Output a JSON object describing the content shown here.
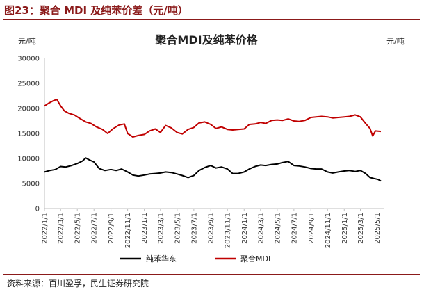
{
  "figure": {
    "title": "图23：聚合 MDI 及纯苯价差（元/吨）",
    "source": "资料来源：百川盈孚，民生证券研究院"
  },
  "colors": {
    "benzene": "#000000",
    "mdi": "#c00000",
    "accent": "#8b1a1a"
  },
  "chart_data": {
    "type": "line",
    "title": "聚合MDI及纯苯价格",
    "ylabel_left": "元/吨",
    "ylabel_right": "元/吨",
    "ylim": [
      0,
      30000
    ],
    "yticks": [
      0,
      5000,
      10000,
      15000,
      20000,
      25000,
      30000
    ],
    "ytick_labels": [
      "0",
      "5000",
      "10000",
      "15000",
      "20000",
      "25000",
      "30000"
    ],
    "xlim": [
      "2022-01-01",
      "2025-05-15"
    ],
    "xticks": [
      "2022-01-01",
      "2022-03-01",
      "2022-05-01",
      "2022-07-01",
      "2022-09-01",
      "2022-11-01",
      "2023-01-01",
      "2023-03-01",
      "2023-05-01",
      "2023-07-01",
      "2023-09-01",
      "2023-11-01",
      "2024-01-01",
      "2024-03-01",
      "2024-05-01",
      "2024-07-01",
      "2024-09-01",
      "2024-11-01",
      "2025-01-01",
      "2025-03-01",
      "2025-05-01"
    ],
    "xtick_labels": [
      "2022/1/1",
      "2022/3/1",
      "2022/5/1",
      "2022/7/1",
      "2022/9/1",
      "2022/11/1",
      "2023/1/1",
      "2023/3/1",
      "2023/5/1",
      "2023/7/1",
      "2023/9/1",
      "2023/11/1",
      "2024/1/1",
      "2024/3/1",
      "2024/5/1",
      "2024/7/1",
      "2024/9/1",
      "2024/11/1",
      "2025/1/1",
      "2025/3/1",
      "2025/5/1"
    ],
    "grid": false,
    "legend_position": "bottom",
    "series": [
      {
        "name": "纯苯华东",
        "color": "#000000",
        "points": [
          [
            "2022-01-01",
            7300
          ],
          [
            "2022-01-20",
            7600
          ],
          [
            "2022-02-10",
            7800
          ],
          [
            "2022-03-01",
            8400
          ],
          [
            "2022-03-20",
            8300
          ],
          [
            "2022-04-10",
            8600
          ],
          [
            "2022-05-01",
            9000
          ],
          [
            "2022-05-20",
            9500
          ],
          [
            "2022-06-01",
            10100
          ],
          [
            "2022-06-15",
            9700
          ],
          [
            "2022-07-01",
            9300
          ],
          [
            "2022-07-20",
            8000
          ],
          [
            "2022-08-10",
            7600
          ],
          [
            "2022-09-01",
            7800
          ],
          [
            "2022-09-20",
            7600
          ],
          [
            "2022-10-10",
            7900
          ],
          [
            "2022-11-01",
            7300
          ],
          [
            "2022-11-20",
            6700
          ],
          [
            "2022-12-10",
            6500
          ],
          [
            "2023-01-01",
            6700
          ],
          [
            "2023-01-20",
            6900
          ],
          [
            "2023-02-10",
            7000
          ],
          [
            "2023-03-01",
            7100
          ],
          [
            "2023-03-20",
            7300
          ],
          [
            "2023-04-10",
            7200
          ],
          [
            "2023-05-01",
            6900
          ],
          [
            "2023-05-20",
            6600
          ],
          [
            "2023-06-10",
            6200
          ],
          [
            "2023-07-01",
            6600
          ],
          [
            "2023-07-20",
            7600
          ],
          [
            "2023-08-10",
            8200
          ],
          [
            "2023-09-01",
            8600
          ],
          [
            "2023-09-20",
            8100
          ],
          [
            "2023-10-10",
            8300
          ],
          [
            "2023-11-01",
            7900
          ],
          [
            "2023-11-20",
            7000
          ],
          [
            "2023-12-10",
            7000
          ],
          [
            "2024-01-01",
            7300
          ],
          [
            "2024-01-20",
            7900
          ],
          [
            "2024-02-10",
            8400
          ],
          [
            "2024-03-01",
            8700
          ],
          [
            "2024-03-20",
            8600
          ],
          [
            "2024-04-10",
            8800
          ],
          [
            "2024-05-01",
            8900
          ],
          [
            "2024-05-20",
            9200
          ],
          [
            "2024-06-10",
            9400
          ],
          [
            "2024-07-01",
            8600
          ],
          [
            "2024-07-20",
            8500
          ],
          [
            "2024-08-10",
            8300
          ],
          [
            "2024-09-01",
            8000
          ],
          [
            "2024-09-20",
            7900
          ],
          [
            "2024-10-10",
            7900
          ],
          [
            "2024-11-01",
            7300
          ],
          [
            "2024-11-20",
            7100
          ],
          [
            "2024-12-10",
            7300
          ],
          [
            "2025-01-01",
            7500
          ],
          [
            "2025-01-20",
            7600
          ],
          [
            "2025-02-10",
            7400
          ],
          [
            "2025-03-01",
            7600
          ],
          [
            "2025-03-20",
            7000
          ],
          [
            "2025-04-05",
            6200
          ],
          [
            "2025-04-20",
            6000
          ],
          [
            "2025-05-05",
            5800
          ],
          [
            "2025-05-15",
            5500
          ]
        ]
      },
      {
        "name": "聚合MDI",
        "color": "#c00000",
        "points": [
          [
            "2022-01-01",
            20500
          ],
          [
            "2022-01-15",
            21000
          ],
          [
            "2022-02-01",
            21500
          ],
          [
            "2022-02-15",
            21800
          ],
          [
            "2022-03-01",
            20500
          ],
          [
            "2022-03-15",
            19500
          ],
          [
            "2022-04-01",
            19000
          ],
          [
            "2022-04-20",
            18700
          ],
          [
            "2022-05-10",
            18000
          ],
          [
            "2022-06-01",
            17300
          ],
          [
            "2022-06-20",
            17000
          ],
          [
            "2022-07-10",
            16300
          ],
          [
            "2022-08-01",
            15800
          ],
          [
            "2022-08-20",
            15000
          ],
          [
            "2022-09-10",
            16000
          ],
          [
            "2022-10-01",
            16700
          ],
          [
            "2022-10-20",
            16900
          ],
          [
            "2022-11-01",
            15000
          ],
          [
            "2022-11-20",
            14300
          ],
          [
            "2022-12-10",
            14600
          ],
          [
            "2023-01-01",
            14800
          ],
          [
            "2023-01-20",
            15500
          ],
          [
            "2023-02-10",
            15900
          ],
          [
            "2023-03-01",
            15200
          ],
          [
            "2023-03-20",
            16600
          ],
          [
            "2023-04-10",
            16100
          ],
          [
            "2023-05-01",
            15200
          ],
          [
            "2023-05-20",
            14900
          ],
          [
            "2023-06-10",
            15800
          ],
          [
            "2023-07-01",
            16200
          ],
          [
            "2023-07-20",
            17100
          ],
          [
            "2023-08-10",
            17300
          ],
          [
            "2023-09-01",
            16800
          ],
          [
            "2023-09-20",
            16000
          ],
          [
            "2023-10-10",
            16300
          ],
          [
            "2023-11-01",
            15800
          ],
          [
            "2023-11-20",
            15700
          ],
          [
            "2023-12-10",
            15800
          ],
          [
            "2024-01-01",
            15900
          ],
          [
            "2024-01-20",
            16800
          ],
          [
            "2024-02-10",
            16900
          ],
          [
            "2024-03-01",
            17200
          ],
          [
            "2024-03-20",
            17000
          ],
          [
            "2024-04-10",
            17600
          ],
          [
            "2024-05-01",
            17700
          ],
          [
            "2024-05-20",
            17600
          ],
          [
            "2024-06-10",
            17900
          ],
          [
            "2024-07-01",
            17500
          ],
          [
            "2024-07-20",
            17400
          ],
          [
            "2024-08-10",
            17600
          ],
          [
            "2024-09-01",
            18200
          ],
          [
            "2024-09-20",
            18300
          ],
          [
            "2024-10-10",
            18400
          ],
          [
            "2024-11-01",
            18300
          ],
          [
            "2024-11-20",
            18100
          ],
          [
            "2024-12-10",
            18200
          ],
          [
            "2025-01-01",
            18300
          ],
          [
            "2025-01-20",
            18400
          ],
          [
            "2025-02-10",
            18700
          ],
          [
            "2025-03-01",
            18300
          ],
          [
            "2025-03-20",
            17000
          ],
          [
            "2025-04-05",
            16000
          ],
          [
            "2025-04-15",
            14500
          ],
          [
            "2025-04-25",
            15500
          ],
          [
            "2025-05-15",
            15400
          ]
        ]
      }
    ]
  }
}
